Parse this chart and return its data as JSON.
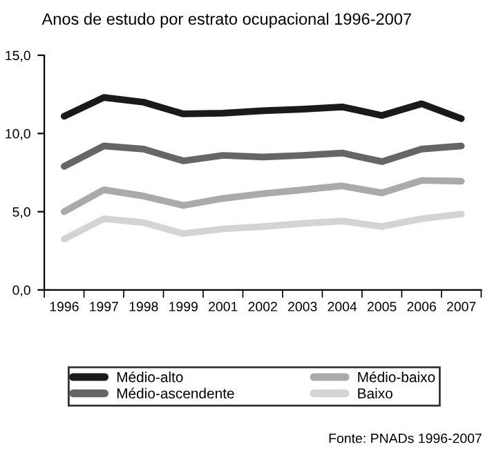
{
  "chart_data": {
    "type": "line",
    "title": "Anos de estudo por estrato ocupacional 1996-2007",
    "categories": [
      "1996",
      "1997",
      "1998",
      "1999",
      "2001",
      "2002",
      "2003",
      "2004",
      "2005",
      "2006",
      "2007"
    ],
    "series": [
      {
        "name": "Médio-alto",
        "color": "#1a1a1a",
        "values": [
          11.1,
          12.3,
          12.0,
          11.25,
          11.3,
          11.45,
          11.55,
          11.7,
          11.15,
          11.9,
          10.95
        ]
      },
      {
        "name": "Médio-ascendente",
        "color": "#666666",
        "values": [
          7.9,
          9.2,
          9.0,
          8.25,
          8.6,
          8.5,
          8.6,
          8.75,
          8.2,
          9.0,
          9.2
        ]
      },
      {
        "name": "Médio-baixo",
        "color": "#aaaaaa",
        "values": [
          5.0,
          6.4,
          6.0,
          5.4,
          5.85,
          6.15,
          6.4,
          6.65,
          6.2,
          7.0,
          6.95
        ]
      },
      {
        "name": "Baixo",
        "color": "#d4d4d4",
        "values": [
          3.25,
          4.55,
          4.3,
          3.6,
          3.9,
          4.05,
          4.25,
          4.4,
          4.05,
          4.55,
          4.85
        ]
      }
    ],
    "ylim": [
      0,
      15
    ],
    "yticks": [
      {
        "value": 0,
        "label": "0,0"
      },
      {
        "value": 5,
        "label": "5,0"
      },
      {
        "value": 10,
        "label": "10,0"
      },
      {
        "value": 15,
        "label": "15,0"
      }
    ],
    "grid": false,
    "legend": "bottom",
    "marker": "none",
    "line_style": "solid",
    "annotations": [
      "Fonte: PNADs 1996-2007"
    ]
  }
}
